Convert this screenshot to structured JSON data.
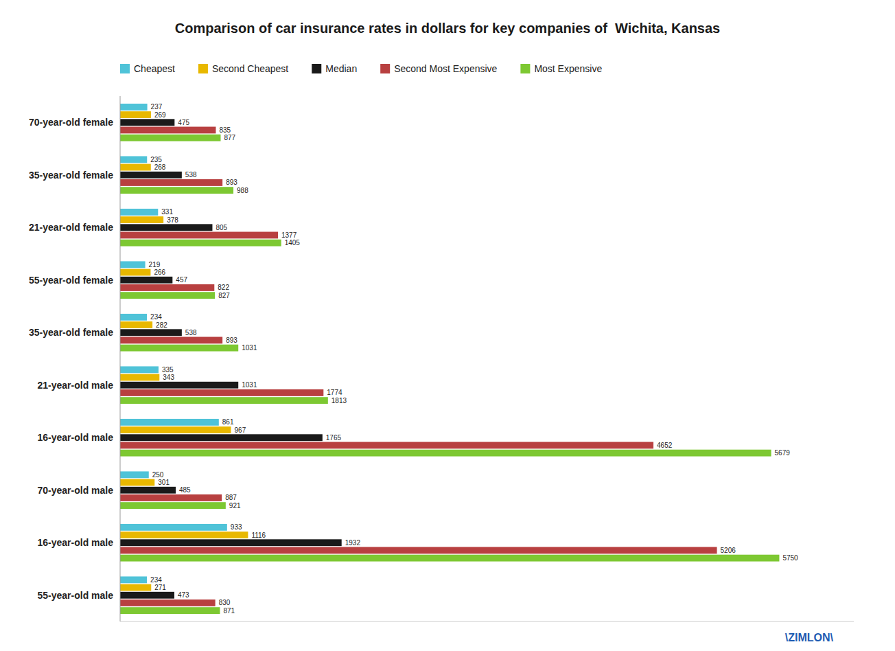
{
  "chart_data": {
    "type": "bar",
    "orientation": "horizontal",
    "title": "Comparison of car insurance rates in dollars for key companies of  Wichita, Kansas",
    "categories": [
      "70-year-old female",
      "35-year-old female",
      "21-year-old female",
      "55-year-old female",
      "35-year-old female",
      "21-year-old male",
      "16-year-old male",
      "70-year-old male",
      "16-year-old male",
      "55-year-old male"
    ],
    "series": [
      {
        "name": "Cheapest",
        "color": "#4FC3D8",
        "values": [
          237,
          235,
          331,
          219,
          234,
          335,
          861,
          250,
          933,
          234
        ]
      },
      {
        "name": "Second Cheapest",
        "color": "#E8B800",
        "values": [
          269,
          268,
          378,
          266,
          282,
          343,
          967,
          301,
          1116,
          271
        ]
      },
      {
        "name": "Median",
        "color": "#1A1A1A",
        "values": [
          475,
          538,
          805,
          457,
          538,
          1031,
          1765,
          485,
          1932,
          473
        ]
      },
      {
        "name": "Second Most Expensive",
        "color": "#B84040",
        "values": [
          835,
          893,
          1377,
          822,
          893,
          1774,
          4652,
          887,
          5206,
          830
        ]
      },
      {
        "name": "Most Expensive",
        "color": "#7DC832",
        "values": [
          877,
          988,
          1405,
          827,
          1031,
          1813,
          5679,
          921,
          5750,
          871
        ]
      }
    ],
    "xlim": [
      0,
      6400
    ],
    "tick_labels": "y",
    "data_labels": true,
    "grid": false,
    "legend": "top",
    "annotations": [
      "\\ZIMLON\\"
    ]
  }
}
